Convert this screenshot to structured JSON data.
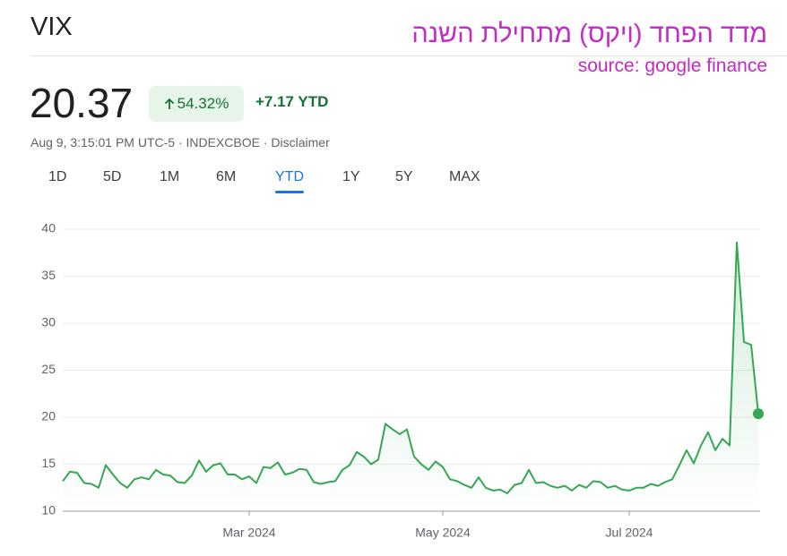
{
  "header": {
    "symbol": "VIX",
    "title": "מדד הפחד (ויקס) מתחילת השנה",
    "source": "source: google finance",
    "price": "20.37",
    "change_percent": "54.32%",
    "change_ytd": "+7.17 YTD",
    "meta": "Aug 9, 3:15:01 PM UTC-5 · INDEXCBOE · Disclaimer"
  },
  "tabs": [
    "1D",
    "5D",
    "1M",
    "6M",
    "YTD",
    "1Y",
    "5Y",
    "MAX"
  ],
  "selected_tab": "YTD",
  "chart_data": {
    "type": "line",
    "color": "#34a853",
    "grid": true,
    "ylim": [
      10,
      40
    ],
    "yticks": [
      10,
      15,
      20,
      25,
      30,
      35,
      40
    ],
    "categories": [
      null,
      null,
      null,
      null,
      null,
      null,
      null,
      null,
      null,
      null,
      null,
      null,
      null,
      null,
      null,
      null,
      null,
      null,
      null,
      null,
      null,
      null,
      null,
      null,
      null,
      null,
      "Mar 2024",
      null,
      null,
      null,
      null,
      null,
      null,
      null,
      null,
      null,
      null,
      null,
      null,
      null,
      null,
      null,
      null,
      null,
      null,
      null,
      null,
      null,
      null,
      null,
      null,
      null,
      null,
      "May 2024",
      null,
      null,
      null,
      null,
      null,
      null,
      null,
      null,
      null,
      null,
      null,
      null,
      null,
      null,
      null,
      null,
      null,
      null,
      null,
      null,
      null,
      null,
      null,
      null,
      null,
      "Jul 2024",
      null,
      null,
      null,
      null,
      null,
      null,
      null,
      null,
      null,
      null,
      null,
      null,
      null,
      null,
      null,
      null,
      null,
      null
    ],
    "values": [
      13.2,
      14.2,
      14.1,
      13.0,
      12.9,
      12.5,
      14.9,
      13.9,
      13.0,
      12.5,
      13.4,
      13.6,
      13.4,
      14.4,
      13.9,
      13.8,
      13.1,
      13.0,
      13.8,
      15.4,
      14.2,
      14.9,
      15.1,
      13.9,
      13.9,
      13.4,
      13.7,
      13.0,
      14.7,
      14.6,
      15.2,
      13.9,
      14.1,
      14.5,
      14.4,
      13.1,
      12.9,
      13.1,
      13.2,
      14.4,
      14.9,
      16.3,
      15.8,
      15.0,
      15.5,
      19.3,
      18.7,
      18.2,
      18.7,
      15.8,
      15.0,
      14.4,
      15.3,
      14.7,
      13.4,
      13.2,
      12.8,
      12.5,
      13.6,
      12.5,
      12.2,
      12.3,
      11.9,
      12.8,
      13.0,
      14.4,
      13.0,
      13.1,
      12.7,
      12.5,
      12.7,
      12.2,
      12.8,
      12.5,
      13.2,
      13.1,
      12.5,
      12.7,
      12.3,
      12.2,
      12.5,
      12.5,
      12.9,
      12.7,
      13.1,
      13.4,
      14.9,
      16.5,
      15.1,
      17.0,
      18.4,
      16.5,
      17.7,
      17.0,
      38.6,
      28.0,
      27.7,
      20.37
    ]
  }
}
